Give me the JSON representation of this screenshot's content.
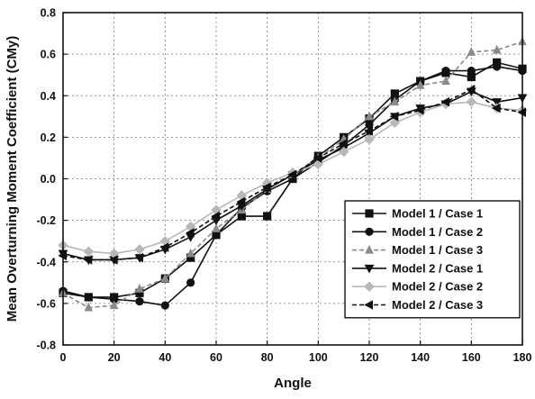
{
  "chart_data": {
    "type": "line",
    "title": "",
    "xlabel": "Angle",
    "ylabel": "Mean Overturning Moment Coefficient (CMy)",
    "xlim": [
      0,
      180
    ],
    "ylim": [
      -0.8,
      0.8
    ],
    "xticks": [
      "0",
      "20",
      "40",
      "60",
      "80",
      "100",
      "120",
      "140",
      "160",
      "180"
    ],
    "yticks": [
      "-0.8",
      "-0.6",
      "-0.4",
      "-0.2",
      "0.0",
      "0.2",
      "0.4",
      "0.6",
      "0.8"
    ],
    "grid": true,
    "legend_position": "bottom-right",
    "x": [
      0,
      10,
      20,
      30,
      40,
      50,
      60,
      70,
      80,
      90,
      100,
      110,
      120,
      130,
      140,
      150,
      160,
      170,
      180
    ],
    "series": [
      {
        "name": "Model 1 / Case 1",
        "marker": "square",
        "color": "#111111",
        "dash": "solid",
        "values": [
          -0.55,
          -0.57,
          -0.57,
          -0.55,
          -0.48,
          -0.38,
          -0.27,
          -0.18,
          -0.18,
          0.0,
          0.11,
          0.2,
          0.29,
          0.41,
          0.47,
          0.51,
          0.49,
          0.56,
          0.53
        ]
      },
      {
        "name": "Model 1 / Case 2",
        "marker": "circle",
        "color": "#111111",
        "dash": "solid",
        "values": [
          -0.54,
          -0.57,
          -0.58,
          -0.59,
          -0.61,
          -0.5,
          -0.27,
          -0.14,
          -0.06,
          0.0,
          0.08,
          0.16,
          0.26,
          0.38,
          0.47,
          0.52,
          0.52,
          0.54,
          0.52
        ]
      },
      {
        "name": "Model 1 / Case 3",
        "marker": "triangle-up",
        "color": "#8a8a8a",
        "dash": "dash",
        "values": [
          -0.55,
          -0.62,
          -0.61,
          -0.53,
          -0.48,
          -0.36,
          -0.24,
          -0.15,
          -0.05,
          0.02,
          0.1,
          0.19,
          0.3,
          0.37,
          0.45,
          0.47,
          0.61,
          0.62,
          0.66
        ]
      },
      {
        "name": "Model 2 / Case 1",
        "marker": "triangle-down",
        "color": "#111111",
        "dash": "solid",
        "values": [
          -0.36,
          -0.39,
          -0.39,
          -0.38,
          -0.34,
          -0.28,
          -0.2,
          -0.13,
          -0.05,
          0.02,
          0.09,
          0.15,
          0.22,
          0.3,
          0.34,
          0.36,
          0.42,
          0.37,
          0.39
        ]
      },
      {
        "name": "Model 2 / Case 2",
        "marker": "diamond",
        "color": "#b8b8b8",
        "dash": "solid",
        "values": [
          -0.32,
          -0.35,
          -0.36,
          -0.34,
          -0.3,
          -0.23,
          -0.15,
          -0.08,
          -0.02,
          0.03,
          0.07,
          0.13,
          0.19,
          0.27,
          0.32,
          0.36,
          0.37,
          0.34,
          0.33
        ]
      },
      {
        "name": "Model 2 / Case 3",
        "marker": "triangle-left",
        "color": "#111111",
        "dash": "dash",
        "values": [
          -0.37,
          -0.39,
          -0.39,
          -0.38,
          -0.33,
          -0.26,
          -0.18,
          -0.11,
          -0.04,
          0.02,
          0.1,
          0.17,
          0.23,
          0.3,
          0.33,
          0.37,
          0.43,
          0.34,
          0.32
        ]
      }
    ]
  }
}
